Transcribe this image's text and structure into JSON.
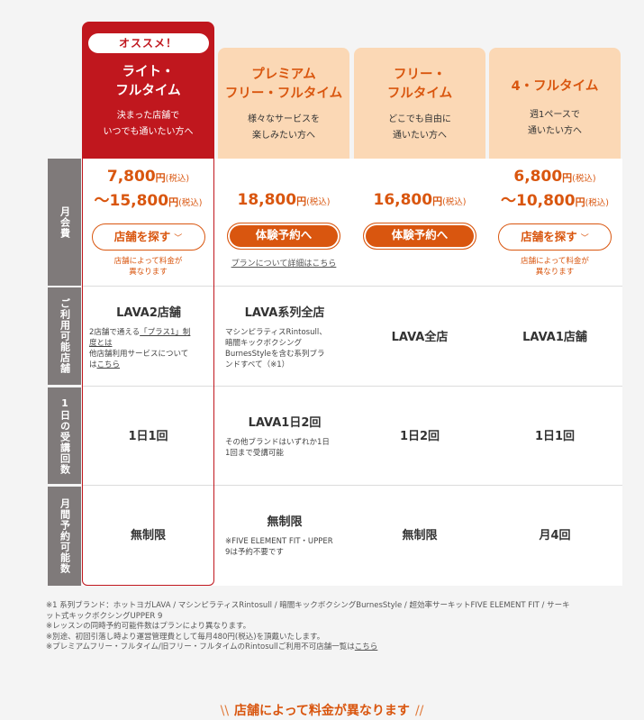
{
  "plans": {
    "lite": {
      "badge": "オススメ！",
      "name1": "ライト・",
      "name2": "フルタイム",
      "desc1": "決まった店舗で",
      "desc2": "いつでも通いたい方へ"
    },
    "premium": {
      "name1": "プレミアム",
      "name2": "フリー・フルタイム",
      "desc1": "様々なサービスを",
      "desc2": "楽しみたい方へ"
    },
    "free": {
      "name1": "フリー・",
      "name2": "フルタイム",
      "desc1": "どこでも自由に",
      "desc2": "通いたい方へ"
    },
    "four": {
      "name1": "4・フルタイム",
      "desc1": "週1ペースで",
      "desc2": "通いたい方へ"
    }
  },
  "row_labels": {
    "monthly": "月会費",
    "stores": "ご利用可能店舗",
    "daily": "1日の受講回数",
    "reserve": "月間予約可能数"
  },
  "monthly": {
    "lite": {
      "price1": "7,800",
      "price2": "〜15,800",
      "yen": "円",
      "tax": "(税込)",
      "button": "店舗を探す",
      "note1": "店舗によって料金が",
      "note2": "異なります"
    },
    "premium": {
      "price": "18,800",
      "yen": "円",
      "tax": "(税込)",
      "button": "体験予約へ",
      "link": "プランについて詳細はこちら"
    },
    "free": {
      "price": "16,800",
      "yen": "円",
      "tax": "(税込)",
      "button": "体験予約へ"
    },
    "four": {
      "price1": "6,800",
      "price2": "〜10,800",
      "yen": "円",
      "tax": "(税込)",
      "button": "店舗を探す",
      "note1": "店舗によって料金が",
      "note2": "異なります"
    }
  },
  "stores": {
    "lite": {
      "main": "LAVA2店舗",
      "sub_a": "2店舗で通える",
      "sub_link1": "「プラス1」制",
      "sub_link2": "度とは",
      "sub_b": "他店舗利用サービスについて",
      "sub_c": "は",
      "sub_link3": "こちら"
    },
    "premium": {
      "main": "LAVA系列全店",
      "sub1": "マシンピラティスRintosull、",
      "sub2": "暗闇キックボクシング",
      "sub3": "BurnesStyleを含む系列ブラ",
      "sub4": "ンドすべて（※1）"
    },
    "free": {
      "main": "LAVA全店"
    },
    "four": {
      "main": "LAVA1店舗"
    }
  },
  "daily": {
    "lite": "1日1回",
    "premium": {
      "main": "LAVA1日2回",
      "sub1": "その他ブランドはいずれか1日",
      "sub2": "1回まで受講可能"
    },
    "free": "1日2回",
    "four": "1日1回"
  },
  "reserve": {
    "lite": "無制限",
    "premium": {
      "main": "無制限",
      "sub1": "※FIVE ELEMENT FIT・UPPER",
      "sub2": "9は予約不要です"
    },
    "free": "無制限",
    "four": "月4回"
  },
  "footnotes": {
    "n1a": "※1 系列ブランド：ホットヨガLAVA / マシンピラティスRintosull / 暗闇キックボクシングBurnesStyle / 超効率サーキットFIVE ELEMENT FIT / サーキ",
    "n1b": "ット式キックボクシングUPPER 9",
    "n2": "※レッスンの同時予約可能件数はプランにより異なります。",
    "n3": "※別途、初回引落し時より運営管理費として毎月480円(税込)を頂戴いたします。",
    "n4": "※プレミアムフリー・フルタイム/旧フリー・フルタイムのRintosullご利用不可店舗一覧は",
    "n4_link": "こちら"
  },
  "bottom_title": "店舗によって料金が異なります",
  "colors": {
    "accent": "#d9560f",
    "recommend": "#c0171e",
    "header_bg": "#fbd8b5",
    "label_bg": "#7f7a7a"
  }
}
